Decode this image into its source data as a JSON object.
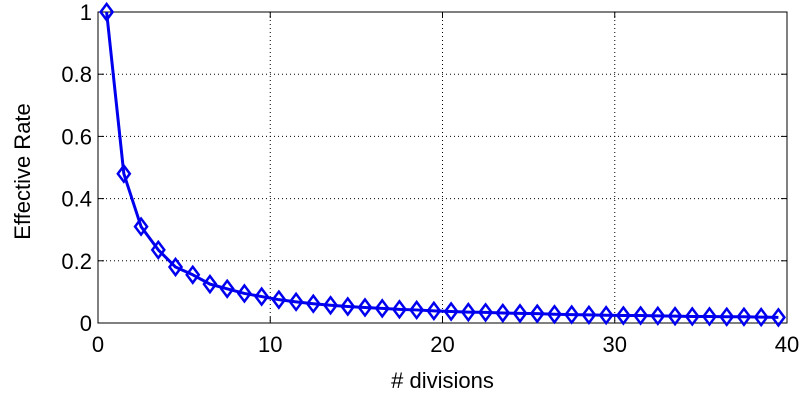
{
  "chart_data": {
    "type": "line",
    "title": "",
    "xlabel": "# divisions",
    "ylabel": "Effective Rate",
    "xlim": [
      0,
      40
    ],
    "ylim": [
      0,
      1
    ],
    "xticks": [
      0,
      10,
      20,
      30,
      40
    ],
    "yticks": [
      0,
      0.2,
      0.4,
      0.6,
      0.8,
      1
    ],
    "xtick_labels": [
      "0",
      "10",
      "20",
      "30",
      "40"
    ],
    "ytick_labels": [
      "0",
      "0.2",
      "0.4",
      "0.6",
      "0.8",
      "1"
    ],
    "grid": true,
    "grid_style": "dotted",
    "marker": "diamond",
    "series": [
      {
        "color": "#0000ee",
        "x": [
          0.5,
          1.5,
          2.5,
          3.5,
          4.5,
          5.5,
          6.5,
          7.5,
          8.5,
          9.5,
          10.5,
          11.5,
          12.5,
          13.5,
          14.5,
          15.5,
          16.5,
          17.5,
          18.5,
          19.5,
          20.5,
          21.5,
          22.5,
          23.5,
          24.5,
          25.5,
          26.5,
          27.5,
          28.5,
          29.5,
          30.5,
          31.5,
          32.5,
          33.5,
          34.5,
          35.5,
          36.5,
          37.5,
          38.5,
          39.5
        ],
        "y": [
          1.0,
          0.48,
          0.31,
          0.235,
          0.18,
          0.155,
          0.125,
          0.11,
          0.095,
          0.085,
          0.075,
          0.068,
          0.062,
          0.057,
          0.053,
          0.05,
          0.047,
          0.044,
          0.042,
          0.039,
          0.037,
          0.035,
          0.034,
          0.032,
          0.031,
          0.03,
          0.028,
          0.027,
          0.026,
          0.025,
          0.024,
          0.024,
          0.023,
          0.022,
          0.021,
          0.021,
          0.02,
          0.02,
          0.019,
          0.018
        ]
      }
    ]
  }
}
